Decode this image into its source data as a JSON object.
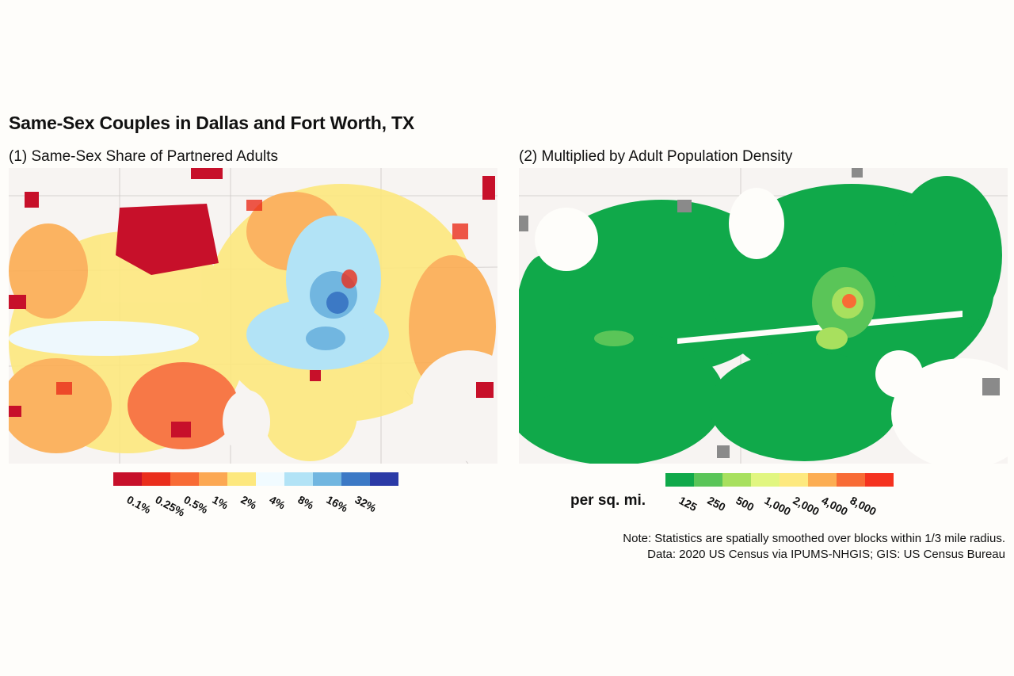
{
  "title": "Same-Sex Couples in Dallas and Fort Worth, TX",
  "panels": [
    {
      "subtitle": "(1) Same-Sex Share of Partnered Adults",
      "legend": {
        "colors": [
          "#c7102a",
          "#ea2e1c",
          "#f86b35",
          "#fca853",
          "#fde87e",
          "#f1fbff",
          "#b2e3f6",
          "#71b6e0",
          "#3c79c5",
          "#2b3aa6"
        ],
        "ticks": [
          "0.1%",
          "0.25%",
          "0.5%",
          "1%",
          "2%",
          "4%",
          "8%",
          "16%",
          "32%"
        ]
      }
    },
    {
      "subtitle": "(2) Multiplied by Adult Population Density",
      "legend": {
        "unit": "per sq. mi.",
        "colors": [
          "#10a94a",
          "#5ac558",
          "#a8e05e",
          "#e1f680",
          "#fde97f",
          "#fcad52",
          "#f86b35",
          "#f5321f"
        ],
        "ticks": [
          "125",
          "250",
          "500",
          "1,000",
          "2,000",
          "4,000",
          "8,000"
        ]
      }
    }
  ],
  "note": {
    "line1": "Note: Statistics are spatially smoothed over blocks within 1/3 mile radius.",
    "line2": "Data: 2020 US Census via IPUMS-NHGIS; GIS: US Census Bureau"
  }
}
